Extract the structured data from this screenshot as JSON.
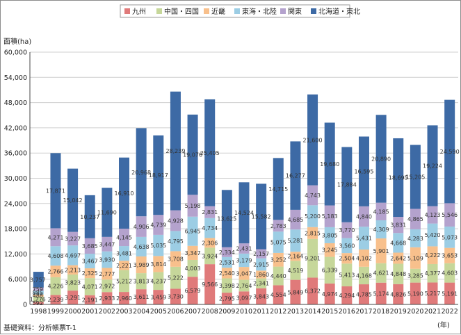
{
  "chart_data": {
    "type": "bar",
    "stacked": true,
    "ylabel": "面積(ha)",
    "xunit": "(年)",
    "source": "基礎資料：分析帳票T-1",
    "ylim": [
      0,
      60000
    ],
    "yticks": [
      "0",
      "6,000",
      "12,000",
      "18,000",
      "24,000",
      "30,000",
      "36,000",
      "42,000",
      "48,000",
      "54,000",
      "60,000"
    ],
    "legend_position": "top",
    "categories": [
      "1998",
      "1999",
      "2000",
      "2001",
      "2002",
      "2003",
      "2004",
      "2005",
      "2006",
      "2007",
      "2008",
      "2009",
      "2010",
      "2011",
      "2012",
      "2013",
      "2014",
      "2015",
      "2016",
      "2017",
      "2018",
      "2019",
      "2020",
      "2021",
      "2022"
    ],
    "series": [
      {
        "name": "九州",
        "color": "#e07a7a",
        "values": [
          592,
          2239,
          3291,
          2191,
          2933,
          2960,
          3611,
          3459,
          3730,
          6579,
          9566,
          2795,
          3097,
          3843,
          4554,
          5849,
          6372,
          4974,
          4294,
          4785,
          5174,
          4826,
          5190,
          5217,
          5191
        ],
        "labels": [
          "592",
          "2,239",
          "3,291",
          "2,191",
          "2,933",
          "2,960",
          "3,611",
          "3,459",
          "3,730",
          "6,579",
          "9,566",
          "2,795",
          "3,097",
          "3,843",
          "4,554",
          "5,849",
          "6,372",
          "4,974",
          "4,294",
          "4,785",
          "5,174",
          "4,826",
          "5,190",
          "5,217",
          "5,191"
        ]
      },
      {
        "name": "中国・四国",
        "color": "#c6d79a",
        "values": [
          1276,
          4226,
          3823,
          4071,
          2972,
          5212,
          3813,
          4237,
          5222,
          4003,
          3924,
          3398,
          2764,
          2341,
          4440,
          4519,
          9201,
          6339,
          5413,
          4168,
          4621,
          4848,
          3285,
          4377,
          4603
        ],
        "labels": [
          "1,276",
          "4,226",
          "3,823",
          "4,071",
          "2,972",
          "5,212",
          "3,813",
          "4,237",
          "5,222",
          "4,003",
          "3,924",
          "3,398",
          "2,764",
          "2,341",
          "4,440",
          "4,519",
          "9,201",
          "6,339",
          "5,413",
          "4,168",
          "4,621",
          "4,848",
          "3,285",
          "4,377",
          "4,603"
        ]
      },
      {
        "name": "近畿",
        "color": "#f8c08c",
        "values": [
          488,
          2766,
          2213,
          2325,
          2777,
          2221,
          3989,
          3814,
          3708,
          3347,
          2306,
          2540,
          3047,
          1860,
          3252,
          2164,
          2815,
          3245,
          2504,
          4102,
          5901,
          2642,
          5109,
          4222,
          3653
        ],
        "labels": [
          "488",
          "2,766",
          "2,213",
          "2,325",
          "2,777",
          "2,221",
          "3,989",
          "3,814",
          "3,708",
          "3,347",
          "2,306",
          "2,540",
          "3,047",
          "1,860",
          "3,252",
          "2,164",
          "2,815",
          "3,245",
          "2,504",
          "4,102",
          "5,901",
          "2,642",
          "5,109",
          "4,222",
          "3,653"
        ]
      },
      {
        "name": "東海・北陸",
        "color": "#9ccde4",
        "values": [
          885,
          4608,
          4697,
          3467,
          3930,
          3481,
          4638,
          5035,
          4795,
          6945,
          4734,
          2531,
          3179,
          2915,
          5075,
          5281,
          5200,
          3805,
          3560,
          5431,
          4309,
          4668,
          4283,
          5420,
          5073
        ],
        "labels": [
          "885",
          "4,608",
          "4,697",
          "3,467",
          "3,930",
          "3,481",
          "4,638",
          "5,035",
          "4,795",
          "6,945",
          "4,734",
          "2,531",
          "3,179",
          "2,915",
          "5,075",
          "5,281",
          "5,200",
          "3,805",
          "3,560",
          "5,431",
          "4,309",
          "4,668",
          "4,283",
          "5,420",
          "5,073"
        ]
      },
      {
        "name": "関東",
        "color": "#b4a2cd",
        "values": [
          759,
          4271,
          3227,
          3685,
          3447,
          4145,
          4906,
          4739,
          4928,
          5198,
          2831,
          2334,
          2431,
          2157,
          2783,
          4685,
          4743,
          5183,
          3770,
          4840,
          4185,
          3831,
          4865,
          4123,
          5546
        ],
        "labels": [
          "759",
          "4,271",
          "3,227",
          "3,685",
          "3,447",
          "4,145",
          "4,906",
          "4,739",
          "4,928",
          "5,198",
          "2,831",
          "2,334",
          "2,431",
          "2,157",
          "2,783",
          "4,685",
          "4,743",
          "5,183",
          "3,770",
          "4,840",
          "4,185",
          "3,831",
          "4,865",
          "4,123",
          "5,546"
        ]
      },
      {
        "name": "北海道・東北",
        "color": "#3d6aa5",
        "values": [
          3757,
          17871,
          15042,
          10237,
          11690,
          16910,
          20968,
          18917,
          28239,
          19076,
          25405,
          13625,
          14524,
          15582,
          14715,
          16277,
          21600,
          19680,
          17884,
          16595,
          20890,
          18695,
          15205,
          19224,
          24590
        ],
        "labels": [
          "3,757",
          "17,871",
          "15,042",
          "10,237",
          "11,690",
          "16,910",
          "20,968",
          "18,917",
          "28,239",
          "19,076",
          "25,405",
          "13,625",
          "14,524",
          "15,582",
          "14,715",
          "16,277",
          "21,600",
          "19,680",
          "17,884",
          "16,595",
          "20,890",
          "18,695",
          "15,205",
          "19,224",
          "24,590"
        ]
      }
    ]
  }
}
